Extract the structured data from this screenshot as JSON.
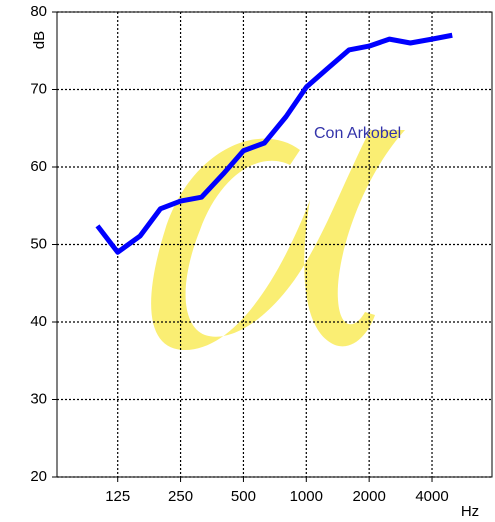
{
  "chart_data": {
    "type": "line",
    "y_label": "dB",
    "x_label": "Hz",
    "x": [
      100,
      125,
      160,
      200,
      250,
      315,
      400,
      500,
      630,
      800,
      1000,
      1250,
      1600,
      2000,
      2500,
      3150,
      4000,
      5000
    ],
    "series": [
      {
        "name": "Con Arkobel",
        "color": "#0000ff",
        "values": [
          52.4,
          49.0,
          51.1,
          54.6,
          55.6,
          56.1,
          59.1,
          62.1,
          63.1,
          66.5,
          70.3,
          72.6,
          75.1,
          75.6,
          76.5,
          76.0,
          76.5,
          77.0
        ]
      }
    ],
    "xlim": [
      64,
      7750
    ],
    "xticks": [
      125,
      250,
      500,
      1000,
      2000,
      4000
    ],
    "xscale": "log",
    "ylim": [
      20,
      80
    ],
    "yticks": [
      20,
      30,
      40,
      50,
      60,
      70,
      80
    ],
    "grid": true
  }
}
